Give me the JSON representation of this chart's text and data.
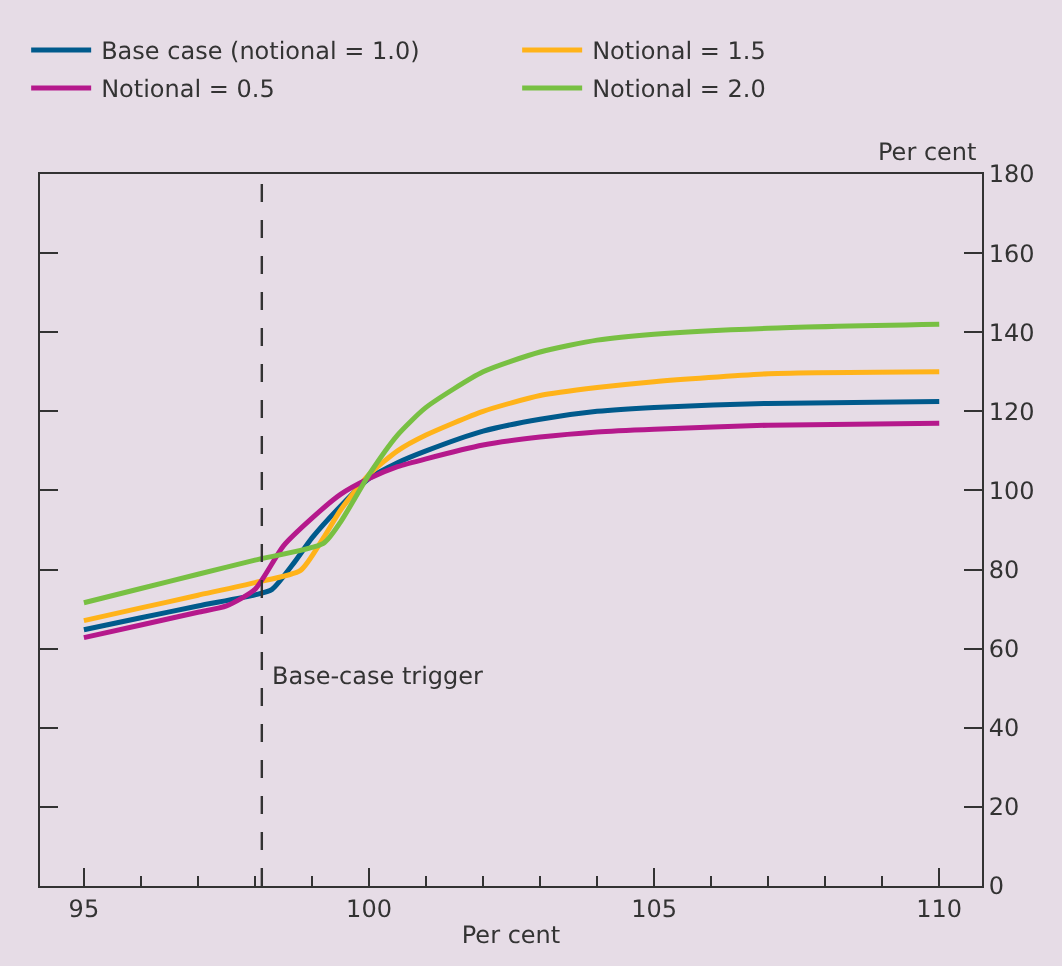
{
  "chart_data": {
    "type": "line",
    "xlabel": "Per cent",
    "ylabel": "Per cent",
    "xlim": [
      94.23,
      110.75
    ],
    "ylim": [
      0,
      180
    ],
    "xticks": [
      95,
      {
        "value": 96,
        "label": null
      },
      {
        "value": 97,
        "label": null
      },
      {
        "value": 98,
        "label": null
      },
      {
        "value": 99,
        "label": null
      },
      100,
      {
        "value": 101,
        "label": null
      },
      {
        "value": 102,
        "label": null
      },
      {
        "value": 103,
        "label": null
      },
      {
        "value": 104,
        "label": null
      },
      105,
      {
        "value": 106,
        "label": null
      },
      {
        "value": 107,
        "label": null
      },
      {
        "value": 108,
        "label": null
      },
      {
        "value": 109,
        "label": null
      },
      110
    ],
    "yticks": [
      0,
      20,
      40,
      60,
      80,
      100,
      120,
      140,
      160,
      180
    ],
    "legend": "top left",
    "grid": false,
    "marker": "none",
    "line_style": "solid",
    "series": [
      {
        "name": "Base case (notional = 1.0)",
        "color": "#005a8c",
        "x": [
          95,
          96,
          97,
          98,
          98.3,
          98.7,
          99,
          99.5,
          100,
          100.5,
          101,
          102,
          103,
          104,
          105,
          107,
          110
        ],
        "values": [
          64.8,
          67.8,
          70.8,
          73.6,
          75,
          82,
          88,
          96,
          103,
          107,
          110,
          115,
          118,
          120,
          121,
          122,
          122.5
        ]
      },
      {
        "name": "Notional = 1.5",
        "color": "#ffb31a",
        "x": [
          95,
          96,
          97,
          98,
          98.8,
          99.2,
          99.5,
          100,
          100.5,
          101,
          102,
          103,
          104,
          105,
          107,
          110
        ],
        "values": [
          67.1,
          70.3,
          73.5,
          76.7,
          79.8,
          88,
          95,
          104,
          110,
          114,
          120,
          124,
          126,
          127.5,
          129.5,
          130
        ]
      },
      {
        "name": "Notional = 0.5",
        "color": "#b5198c",
        "x": [
          95,
          96,
          97,
          97.5,
          98,
          98.5,
          99,
          99.5,
          100,
          100.5,
          101,
          102,
          103,
          104,
          105,
          107,
          110
        ],
        "values": [
          62.8,
          66,
          69.2,
          70.8,
          75,
          86,
          93,
          99,
          103,
          106,
          108,
          111.5,
          113.5,
          114.8,
          115.5,
          116.5,
          117
        ]
      },
      {
        "name": "Notional = 2.0",
        "color": "#78c043",
        "x": [
          95,
          96,
          97,
          98,
          99.2,
          99.5,
          100,
          100.5,
          101,
          102,
          103,
          104,
          105,
          107,
          110
        ],
        "values": [
          71.6,
          75.2,
          78.8,
          82.4,
          86.6,
          92,
          104,
          114,
          121,
          130,
          135,
          138,
          139.5,
          141,
          142
        ]
      }
    ],
    "ref_lines": [
      {
        "axis": "x",
        "value": 98.12,
        "label": "Base-case trigger",
        "color": "#333333",
        "line_style": "dashed"
      }
    ]
  }
}
